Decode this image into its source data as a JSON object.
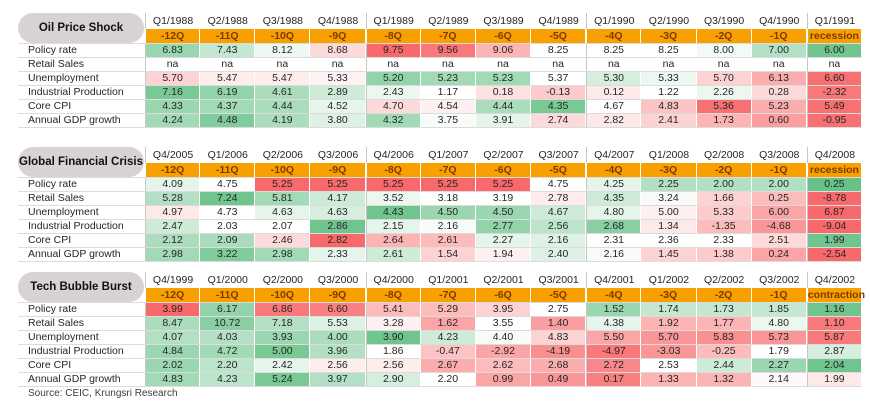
{
  "source": "Source: CEIC, Krungsri Research",
  "palette": {
    "header_orange": "#f8a000",
    "header_orange_text": "#7c3a00",
    "heat_green_max": "#57bb7b",
    "heat_red_max": "#f8696b",
    "pill_bg": "#d8d2d2",
    "grid_line": "#dcdcdc",
    "group_line": "#c6c6c6",
    "text": "#262626"
  },
  "chart_data": [
    {
      "type": "heatmap",
      "title": "Oil Price Shock",
      "columns": [
        "Q1/1988",
        "Q2/1988",
        "Q3/1988",
        "Q4/1988",
        "Q1/1989",
        "Q2/1989",
        "Q3/1989",
        "Q4/1989",
        "Q1/1990",
        "Q2/1990",
        "Q3/1990",
        "Q4/1990",
        "Q1/1991"
      ],
      "column_offsets": [
        "-12Q",
        "-11Q",
        "-10Q",
        "-9Q",
        "-8Q",
        "-7Q",
        "-6Q",
        "-5Q",
        "-4Q",
        "-3Q",
        "-2Q",
        "-1Q",
        "recession"
      ],
      "rows": [
        {
          "label": "Policy rate",
          "values": [
            6.83,
            7.43,
            8.12,
            8.68,
            9.75,
            9.56,
            9.06,
            8.25,
            8.25,
            8.25,
            8.0,
            7.0,
            6.0
          ],
          "tones": [
            0.6,
            0.35,
            0.1,
            -0.25,
            -1.0,
            -0.9,
            -0.5,
            0,
            0,
            0,
            0.08,
            0.45,
            0.85
          ]
        },
        {
          "label": "Retail Sales",
          "values": [
            "na",
            "na",
            "na",
            "na",
            "na",
            "na",
            "na",
            "na",
            "na",
            "na",
            "na",
            "na",
            "na"
          ],
          "tones": [
            0,
            0,
            0,
            0,
            0,
            0,
            0,
            0,
            0,
            0,
            0,
            0,
            0
          ]
        },
        {
          "label": "Unemployment",
          "values": [
            5.7,
            5.47,
            5.47,
            5.33,
            5.2,
            5.23,
            5.23,
            5.37,
            5.3,
            5.33,
            5.7,
            6.13,
            6.6
          ],
          "tones": [
            -0.3,
            -0.12,
            -0.12,
            -0.08,
            0.65,
            0.55,
            0.55,
            0,
            0.25,
            0.12,
            -0.3,
            -0.55,
            -0.95
          ]
        },
        {
          "label": "Industrial Production",
          "values": [
            7.16,
            6.19,
            4.61,
            2.89,
            2.43,
            1.17,
            0.18,
            -0.13,
            0.12,
            1.22,
            2.26,
            0.28,
            -2.32
          ],
          "tones": [
            0.8,
            0.65,
            0.5,
            0.3,
            0.12,
            0,
            -0.2,
            -0.35,
            -0.15,
            0,
            0.12,
            -0.25,
            -0.9
          ]
        },
        {
          "label": "Core CPI",
          "values": [
            4.33,
            4.37,
            4.44,
            4.52,
            4.7,
            4.54,
            4.44,
            4.35,
            4.67,
            4.83,
            5.36,
            5.23,
            5.49
          ],
          "tones": [
            0.6,
            0.55,
            0.5,
            0.15,
            -0.25,
            -0.1,
            0.5,
            0.8,
            0,
            -0.4,
            -0.95,
            -0.55,
            -0.95
          ]
        },
        {
          "label": "Annual GDP growth",
          "values": [
            4.24,
            4.48,
            4.19,
            3.8,
            4.32,
            3.75,
            3.91,
            2.74,
            2.82,
            2.41,
            1.73,
            0.6,
            -0.95
          ],
          "tones": [
            0.55,
            0.75,
            0.5,
            0.2,
            0.55,
            0.05,
            0.15,
            -0.25,
            -0.15,
            -0.3,
            -0.5,
            -0.65,
            -0.95
          ]
        }
      ]
    },
    {
      "type": "heatmap",
      "title": "Global Financial Crisis",
      "columns": [
        "Q4/2005",
        "Q1/2006",
        "Q2/2006",
        "Q3/2006",
        "Q4/2006",
        "Q1/2007",
        "Q2/2007",
        "Q3/2007",
        "Q4/2007",
        "Q1/2008",
        "Q2/2008",
        "Q3/2008",
        "Q4/2008"
      ],
      "column_offsets": [
        "-12Q",
        "-11Q",
        "-10Q",
        "-9Q",
        "-8Q",
        "-7Q",
        "-6Q",
        "-5Q",
        "-4Q",
        "-3Q",
        "-2Q",
        "-1Q",
        "recession"
      ],
      "rows": [
        {
          "label": "Policy rate",
          "values": [
            4.09,
            4.75,
            5.25,
            5.25,
            5.25,
            5.25,
            5.25,
            4.75,
            4.25,
            2.25,
            2.0,
            2.0,
            0.25
          ],
          "tones": [
            0.15,
            0,
            -1.0,
            -1.0,
            -1.0,
            -1.0,
            -1.0,
            0,
            0.15,
            0.45,
            0.45,
            0.45,
            0.9
          ]
        },
        {
          "label": "Retail Sales",
          "values": [
            5.28,
            7.24,
            5.81,
            4.17,
            3.52,
            3.18,
            3.19,
            2.78,
            4.35,
            3.24,
            1.66,
            0.25,
            -8.78
          ],
          "tones": [
            0.45,
            0.85,
            0.55,
            0.3,
            0.12,
            0,
            0,
            -0.12,
            0.3,
            0.05,
            -0.3,
            -0.45,
            -1.0
          ]
        },
        {
          "label": "Unemployment",
          "values": [
            4.97,
            4.73,
            4.63,
            4.63,
            4.43,
            4.5,
            4.5,
            4.67,
            4.8,
            5.0,
            5.33,
            6.0,
            6.87
          ],
          "tones": [
            -0.15,
            0,
            0.15,
            0.25,
            0.85,
            0.6,
            0.6,
            0.3,
            0.15,
            -0.1,
            -0.35,
            -0.6,
            -1.0
          ]
        },
        {
          "label": "Industrial Production",
          "values": [
            2.47,
            2.03,
            2.07,
            2.86,
            2.15,
            2.16,
            2.77,
            2.56,
            2.68,
            1.34,
            -1.35,
            -4.68,
            -9.04
          ],
          "tones": [
            0.3,
            0,
            0,
            0.85,
            0.15,
            0.05,
            0.65,
            0.4,
            0.7,
            -0.15,
            -0.45,
            -0.7,
            -1.0
          ]
        },
        {
          "label": "Core CPI",
          "values": [
            2.12,
            2.09,
            2.46,
            2.82,
            2.64,
            2.61,
            2.27,
            2.16,
            2.31,
            2.36,
            2.33,
            2.51,
            1.99
          ],
          "tones": [
            0.5,
            0.5,
            -0.25,
            -1.0,
            -0.5,
            -0.45,
            0.15,
            0.2,
            0,
            0,
            0,
            -0.25,
            0.85
          ]
        },
        {
          "label": "Annual GDP growth",
          "values": [
            2.98,
            3.22,
            2.98,
            2.33,
            2.61,
            1.54,
            1.94,
            2.4,
            2.16,
            1.45,
            1.38,
            0.24,
            -2.54
          ],
          "tones": [
            0.55,
            0.75,
            0.55,
            0.15,
            0.3,
            -0.3,
            -0.1,
            0.2,
            0.05,
            -0.3,
            -0.35,
            -0.6,
            -1.0
          ]
        }
      ]
    },
    {
      "type": "heatmap",
      "title": "Tech Bubble Burst",
      "columns": [
        "Q4/1999",
        "Q1/2000",
        "Q2/2000",
        "Q3/2000",
        "Q4/2000",
        "Q1/2001",
        "Q2/2001",
        "Q3/2001",
        "Q4/2001",
        "Q1/2002",
        "Q2/2002",
        "Q3/2002",
        "Q4/2002"
      ],
      "column_offsets": [
        "-12Q",
        "-11Q",
        "-10Q",
        "-9Q",
        "-8Q",
        "-7Q",
        "-6Q",
        "-5Q",
        "-4Q",
        "-3Q",
        "-2Q",
        "-1Q",
        "contraction"
      ],
      "rows": [
        {
          "label": "Policy rate",
          "values": [
            3.99,
            6.17,
            6.86,
            6.6,
            5.41,
            5.29,
            3.95,
            2.75,
            1.52,
            1.74,
            1.73,
            1.85,
            1.16
          ],
          "tones": [
            -1.0,
            0.65,
            -0.9,
            -0.85,
            -0.45,
            -0.45,
            -0.3,
            0,
            0.6,
            0.35,
            0.35,
            0.35,
            0.85
          ]
        },
        {
          "label": "Retail Sales",
          "values": [
            8.47,
            10.72,
            7.18,
            5.53,
            3.28,
            1.62,
            3.55,
            1.4,
            4.38,
            1.92,
            1.77,
            4.8,
            1.1
          ],
          "tones": [
            0.5,
            0.7,
            0.45,
            0.2,
            -0.1,
            -0.6,
            0,
            -0.65,
            0.15,
            -0.5,
            -0.5,
            0.12,
            -0.9
          ]
        },
        {
          "label": "Unemployment",
          "values": [
            4.07,
            4.03,
            3.93,
            4.0,
            3.9,
            4.23,
            4.4,
            4.83,
            5.5,
            5.7,
            5.83,
            5.73,
            5.87
          ],
          "tones": [
            0.45,
            0.45,
            0.6,
            0.5,
            0.85,
            0.3,
            0.05,
            -0.3,
            -0.6,
            -0.7,
            -0.75,
            -0.7,
            -0.9
          ]
        },
        {
          "label": "Industrial Production",
          "values": [
            4.84,
            4.72,
            5.0,
            3.96,
            1.86,
            -0.47,
            -2.92,
            -4.19,
            -4.97,
            -3.03,
            -0.25,
            1.79,
            2.87
          ],
          "tones": [
            0.6,
            0.55,
            0.8,
            0.45,
            0,
            -0.4,
            -0.6,
            -0.75,
            -0.9,
            -0.7,
            -0.45,
            0,
            0.25
          ]
        },
        {
          "label": "Core CPI",
          "values": [
            2.02,
            2.2,
            2.42,
            2.56,
            2.56,
            2.67,
            2.62,
            2.68,
            2.72,
            2.53,
            2.44,
            2.27,
            2.04
          ],
          "tones": [
            0.6,
            0.4,
            0.15,
            -0.12,
            -0.12,
            -0.55,
            -0.45,
            -0.55,
            -0.8,
            0,
            0.3,
            0.6,
            0.85
          ]
        },
        {
          "label": "Annual GDP growth",
          "values": [
            4.83,
            4.23,
            5.24,
            3.97,
            2.9,
            2.2,
            0.99,
            0.49,
            0.17,
            1.33,
            1.32,
            2.14,
            1.99
          ],
          "tones": [
            0.55,
            0.4,
            0.8,
            0.45,
            0.25,
            0,
            -0.6,
            -0.7,
            -0.85,
            -0.5,
            -0.5,
            -0.05,
            -0.15
          ]
        }
      ]
    }
  ]
}
